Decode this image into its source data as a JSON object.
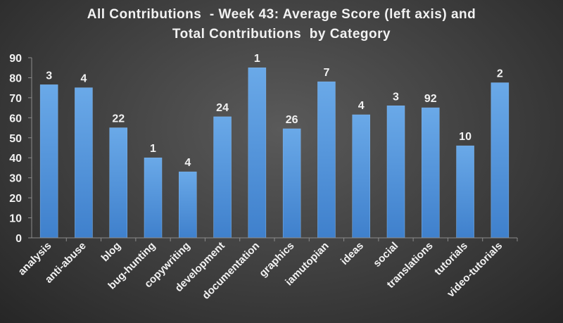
{
  "chart_data": {
    "type": "bar",
    "title_line1": "All Contributions  - Week 43: Average Score (left axis) and",
    "title_line2": "Total Contributions  by Category",
    "categories": [
      "analysis",
      "anti-abuse",
      "blog",
      "bug-hunting",
      "copywriting",
      "development",
      "documentation",
      "graphics",
      "iamutopian",
      "ideas",
      "social",
      "translations",
      "tutorials",
      "video-tutorials"
    ],
    "values": [
      76.5,
      75,
      55,
      40,
      33,
      60.5,
      85,
      54.5,
      78,
      61.5,
      66,
      65,
      46,
      77.5
    ],
    "data_labels": [
      "3",
      "4",
      "22",
      "1",
      "4",
      "24",
      "1",
      "26",
      "7",
      "4",
      "3",
      "92",
      "10",
      "2"
    ],
    "ylim": [
      0,
      90
    ],
    "yticks": [
      0,
      10,
      20,
      30,
      40,
      50,
      60,
      70,
      80,
      90
    ],
    "grid": false,
    "colors": {
      "bar_top": "#6aa9e8",
      "bar_bottom": "#3f80cc",
      "text": "#f2f2f2",
      "axis": "#8c8c8c"
    }
  }
}
